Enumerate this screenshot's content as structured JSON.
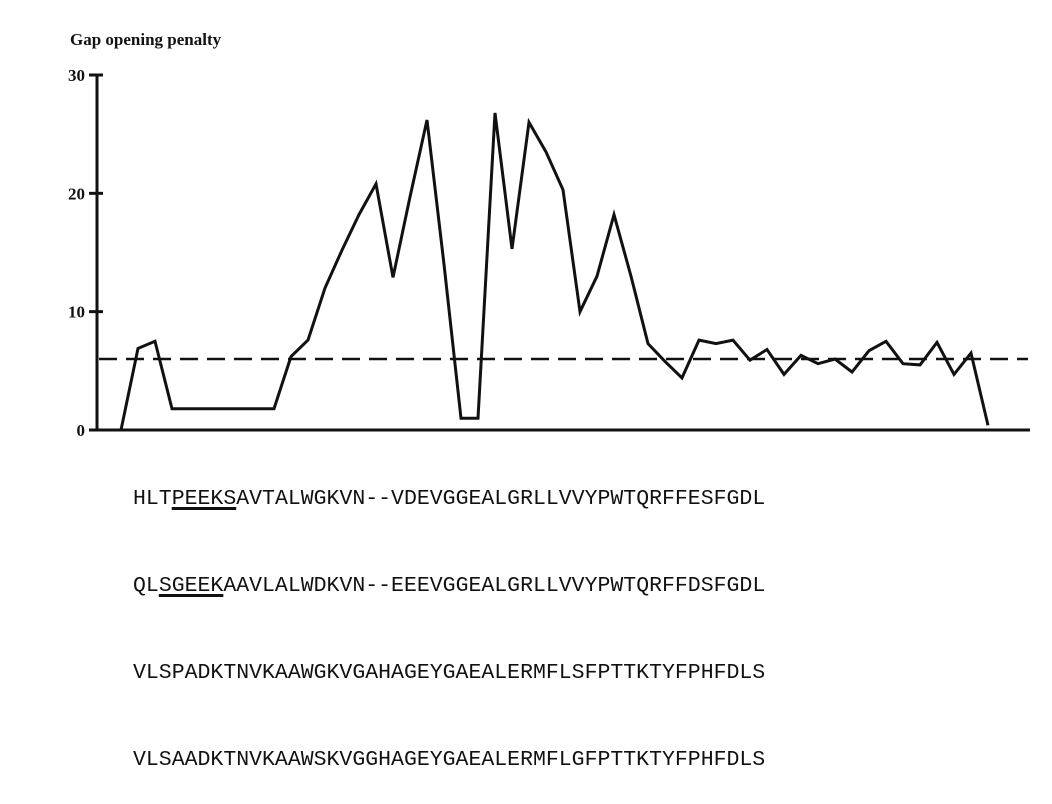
{
  "chart_data": {
    "type": "line",
    "ylabel": "Gap opening penalty",
    "ylim": [
      0,
      30
    ],
    "yticks": [
      "0",
      "10",
      "20",
      "30"
    ],
    "threshold": 6,
    "series": [
      {
        "values": [
          0,
          6.9,
          7.5,
          1.8,
          1.8,
          1.8,
          1.8,
          1.8,
          1.8,
          1.8,
          6.2,
          7.6,
          12.0,
          15.2,
          18.2,
          20.8,
          12.9,
          19.7,
          26.2,
          14.0,
          1.0,
          1.0,
          26.8,
          15.3,
          26.0,
          23.5,
          20.3,
          10.0,
          13.0,
          18.2,
          13.0,
          7.3,
          5.8,
          4.4,
          7.6,
          7.3,
          7.6,
          5.9,
          6.8,
          4.7,
          6.3,
          5.6,
          6.0,
          4.9,
          6.7,
          7.5,
          5.6,
          5.5,
          7.4,
          4.7,
          6.5,
          0.4
        ]
      }
    ],
    "sequences": [
      "HLTPEEKSAVTALWGKVN--VDEVGGEALGRLLVVYPWTQRFFESFGDL",
      "QLSGEEKAAVLALWDKVN--EEEVGGEALGRLLVVYPWTQRFFDSFGDL",
      "VLSPADKTNVKAAWGKVGAHAGEYGAEALERMFLSFPTTKTYFPHFDLS",
      "VLSAADKTNVKAAWSKVGGHAGEYGAEALERMFLGFPTTKTYFPHFDLS"
    ],
    "sequence_underlines": [
      {
        "line": 0,
        "start": 3,
        "end": 8
      },
      {
        "line": 1,
        "start": 2,
        "end": 7
      }
    ]
  }
}
